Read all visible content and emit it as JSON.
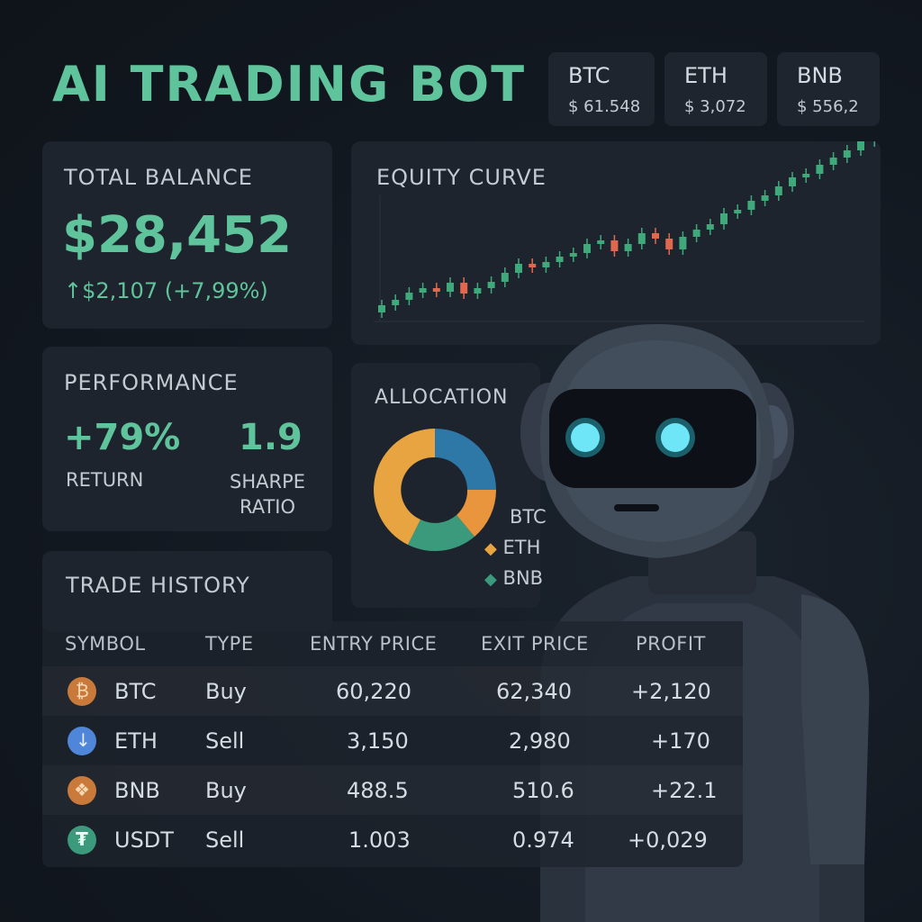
{
  "header": {
    "title": "AI TRADING BOT"
  },
  "tickers": [
    {
      "symbol": "BTC",
      "price": "$ 61.548"
    },
    {
      "symbol": "ETH",
      "price": "$ 3,072"
    },
    {
      "symbol": "BNB",
      "price": "$ 556,2"
    }
  ],
  "balance": {
    "title": "TOTAL BALANCE",
    "value": "$28,452",
    "change": "$2,107 (+7,99%)"
  },
  "performance": {
    "title": "PERFORMANCE",
    "return_value": "+79%",
    "return_label": "RETURN",
    "sharpe_value": "1.9",
    "sharpe_label_1": "SHARPE",
    "sharpe_label_2": "RATIO"
  },
  "equity": {
    "title": "EQUITY CURVE"
  },
  "allocation": {
    "title": "ALLOCATION",
    "legend": [
      "BTC",
      "ETH",
      "BNB"
    ]
  },
  "trade_history": {
    "title": "TRADE HISTORY",
    "columns": [
      "SYMBOL",
      "TYPE",
      "ENTRY PRICE",
      "EXIT PRICE",
      "PROFIT"
    ],
    "rows": [
      {
        "symbol": "BTC",
        "type": "Buy",
        "entry": "60,220",
        "exit": "62,340",
        "profit": "+2,120"
      },
      {
        "symbol": "ETH",
        "type": "Sell",
        "entry": "3,150",
        "exit": "2,980",
        "profit": "+170"
      },
      {
        "symbol": "BNB",
        "type": "Buy",
        "entry": "488.5",
        "exit": "510.6",
        "profit": "+22.1"
      },
      {
        "symbol": "USDT",
        "type": "Sell",
        "entry": "1.003",
        "exit": "0.974",
        "profit": "+0,029"
      }
    ]
  },
  "colors": {
    "accent": "#5fc39b",
    "up_candle": "#3fa97c",
    "down_candle": "#e0684f",
    "btc_slice": "#2e78a8",
    "eth_slice": "#e8a441",
    "bnb_slice": "#3a9a7b",
    "robot_eye": "#6fe6f7"
  },
  "icons": {
    "btc": "bitcoin-icon",
    "eth": "ethereum-icon",
    "bnb": "binance-icon",
    "usdt": "tether-icon"
  }
}
